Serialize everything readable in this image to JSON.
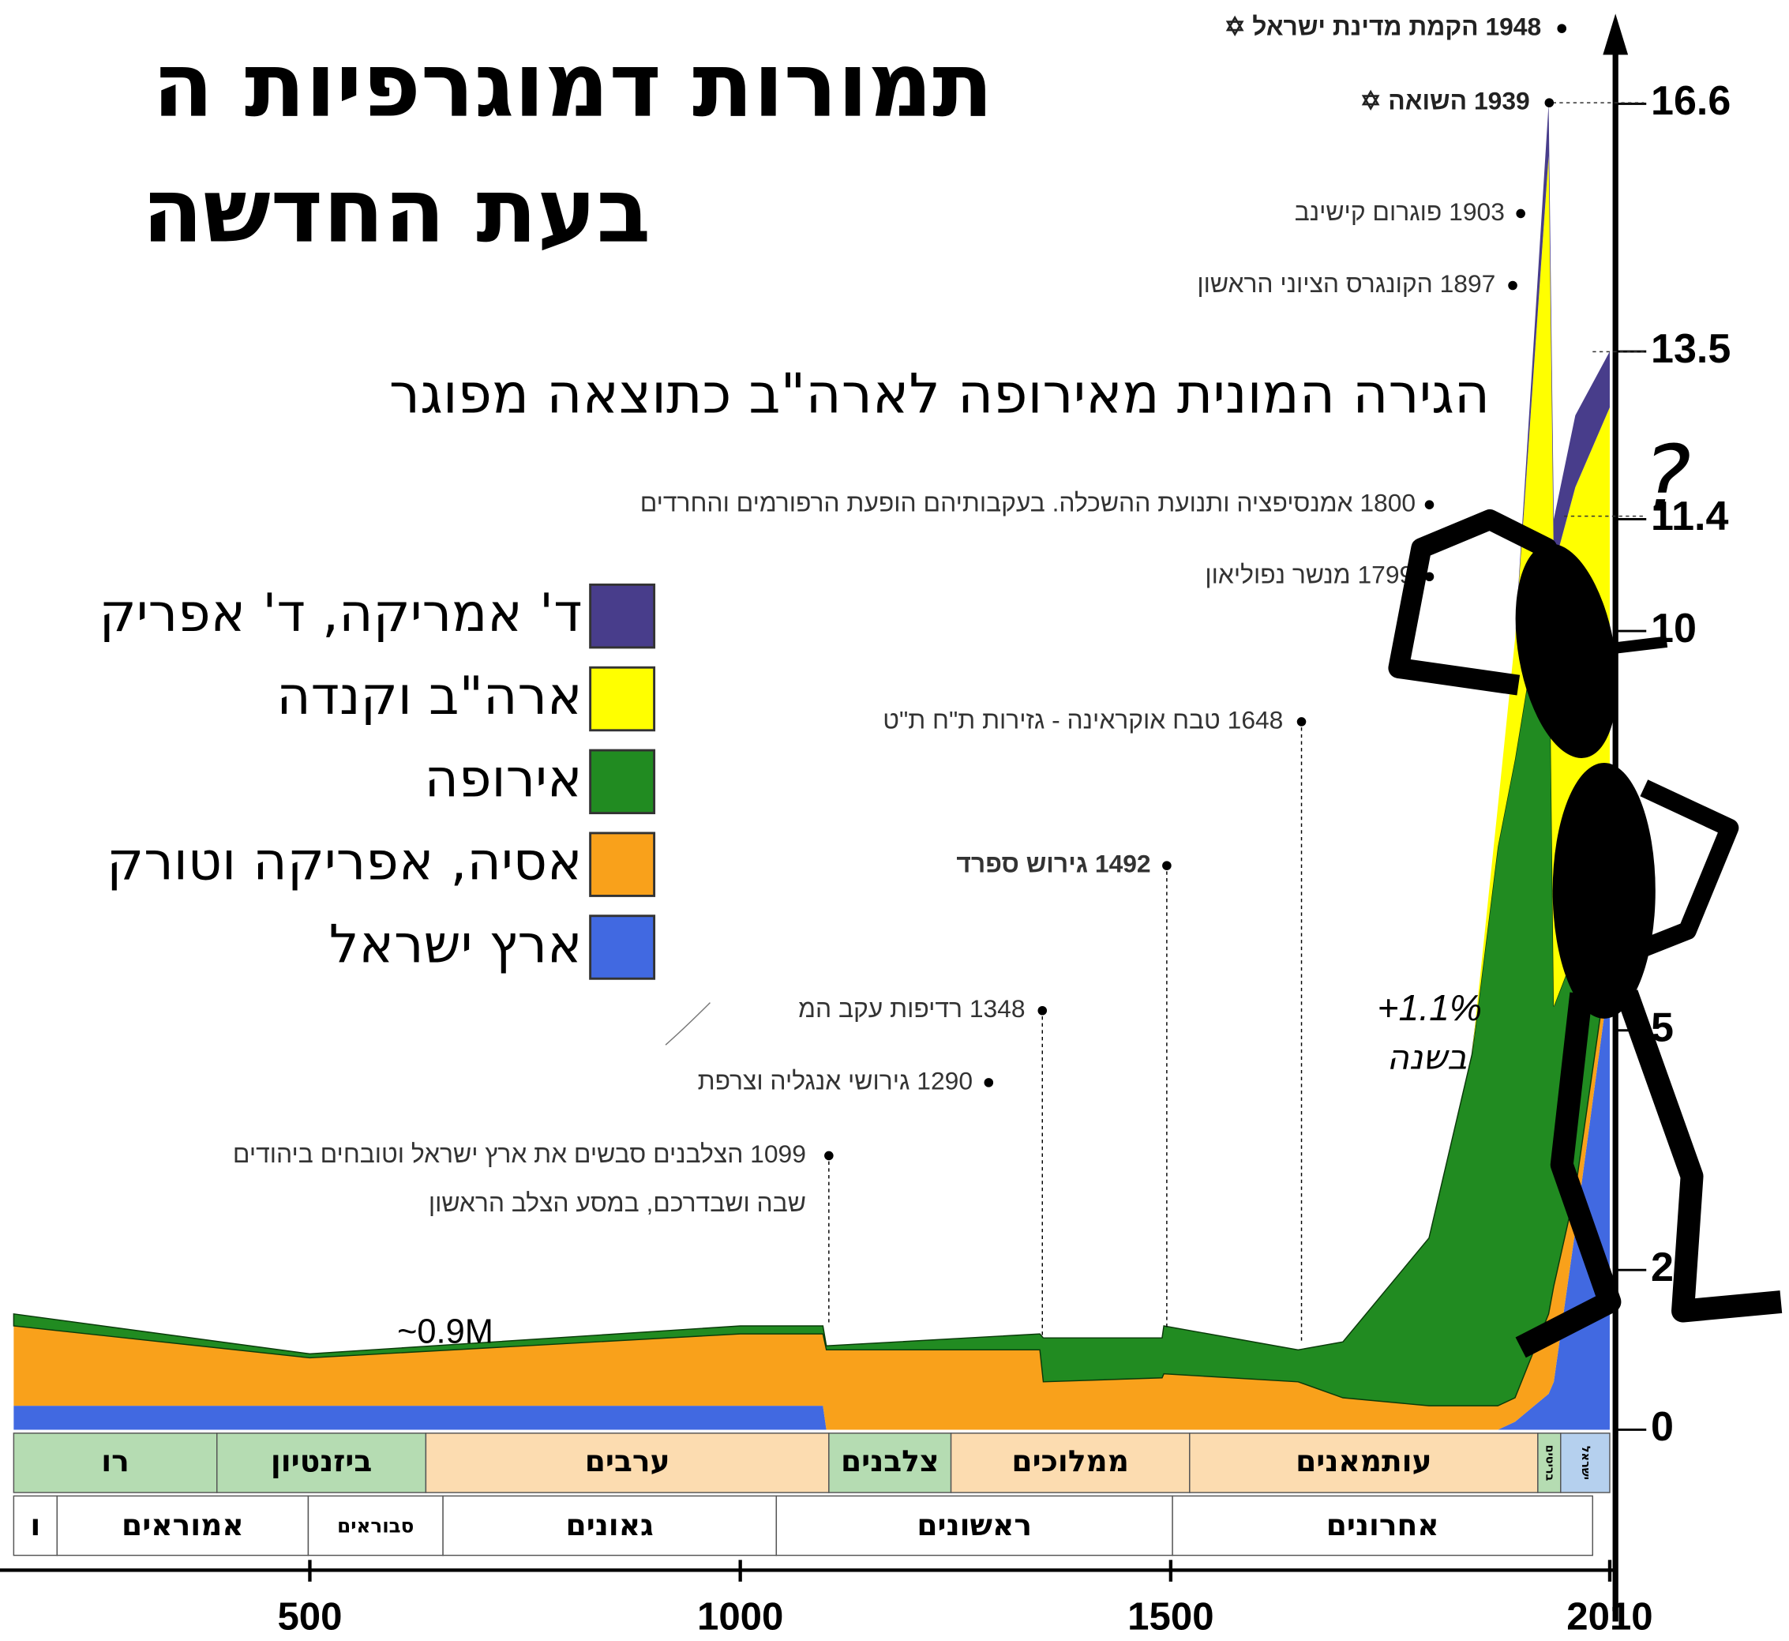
{
  "chart_data": {
    "type": "area",
    "stacked": true,
    "title": [
      "תמורות דמוגרפיות ה",
      "בעת החדשה"
    ],
    "subtitle": "הגירה המונית מאירופה לארה\"ב כתוצאה מפוגר",
    "x": [
      156,
      500,
      1000,
      1096,
      1100,
      1348,
      1352,
      1490,
      1492,
      1648,
      1700,
      1800,
      1850,
      1880,
      1900,
      1939,
      1945,
      1970,
      2010
    ],
    "xlim": [
      156,
      2010
    ],
    "xticks": [
      500,
      1000,
      1500,
      2010
    ],
    "ylim": [
      0,
      17.9
    ],
    "yticks": [
      0,
      2,
      5,
      10,
      11.4,
      13.5,
      16.6
    ],
    "series": [
      {
        "name": "ארץ ישראל",
        "color": "#4169e1",
        "values": [
          0.3,
          0.3,
          0.3,
          0.3,
          0,
          0,
          0,
          0,
          0,
          0,
          0,
          0,
          0,
          0,
          0.1,
          0.45,
          0.6,
          2.5,
          5.7
        ]
      },
      {
        "name": "אסיה, אפריקה וטורק",
        "color": "#f9a11b",
        "values": [
          1.0,
          0.6,
          0.9,
          0.9,
          1.0,
          1.0,
          0.6,
          0.65,
          0.7,
          0.6,
          0.4,
          0.3,
          0.3,
          0.3,
          0.3,
          1.0,
          1.2,
          0.5,
          0.3
        ]
      },
      {
        "name": "אירופה",
        "color": "#218b21",
        "values": [
          0.15,
          0.05,
          0.1,
          0.1,
          0.05,
          0.2,
          0.55,
          0.5,
          0.6,
          0.4,
          0.7,
          2.1,
          4.4,
          7.0,
          8.0,
          9.5,
          3.5,
          3.0,
          1.5
        ]
      },
      {
        "name": "ארה\"ב וקנדה",
        "color": "#ffff00",
        "values": [
          0,
          0,
          0,
          0,
          0,
          0,
          0,
          0,
          0,
          0,
          0,
          0,
          0,
          0.5,
          1.5,
          5.0,
          5.5,
          5.8,
          5.3
        ]
      },
      {
        "name": "ד' אמריקה, ד' אפריק",
        "color": "#483d8b",
        "values": [
          0,
          0,
          0,
          0,
          0,
          0,
          0,
          0,
          0,
          0,
          0,
          0,
          0,
          0,
          0,
          0.65,
          0.6,
          0.9,
          0.7
        ]
      }
    ],
    "annotations": [
      "1948 הקמת מדינת ישראל ✡",
      "1939 השואה ✡",
      "1903 פוגרום קישינב",
      "1897 הקונגרס הציוני הראשון",
      "1800 אמנסיפציה ותנועת ההשכלה. בעקבותיהם הופעת הרפורמים והחרדים",
      "1799 מנשר נפוליאון",
      "1648 טבח אוקראינה - גזירות ת\"ח ת\"ט",
      "1492 גירוש ספרד",
      "1348 רדיפות עקב המ",
      "1290 גירושי אנגליה וצרפת",
      "1099 הצלבנים סבשים את ארץ ישראל וטובחים ביהודים",
      "שבה ושבדרכם, במסע הצלב הראשון"
    ],
    "labels": [
      "~0.9M",
      "+1.1%",
      "בשנה"
    ],
    "rulers": [
      "רו",
      "ביזנטיון",
      "ערבים",
      "צלבנים",
      "ממלוכים",
      "עותמאנים",
      "בריטים",
      "ישראל"
    ],
    "sages": [
      "ו",
      "אמוראים",
      "סבוראים",
      "גאונים",
      "ראשונים",
      "אחרונים"
    ],
    "mark": "?"
  }
}
